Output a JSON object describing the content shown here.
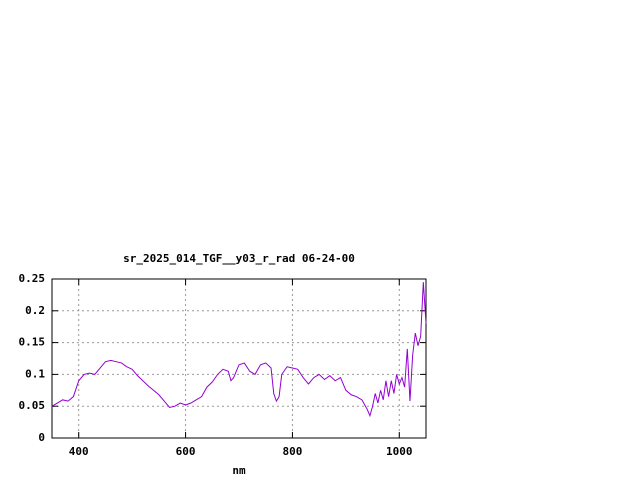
{
  "chart_data": {
    "type": "line",
    "title": "sr_2025_014_TGF__y03_r_rad 06-24-00",
    "x_label": "nm",
    "x": [
      350,
      360,
      370,
      380,
      390,
      400,
      410,
      420,
      430,
      440,
      450,
      460,
      470,
      480,
      490,
      500,
      510,
      520,
      530,
      540,
      550,
      560,
      570,
      580,
      590,
      600,
      610,
      620,
      630,
      640,
      650,
      660,
      670,
      680,
      685,
      690,
      700,
      710,
      720,
      730,
      740,
      750,
      760,
      765,
      770,
      775,
      780,
      790,
      800,
      810,
      820,
      830,
      840,
      850,
      860,
      870,
      880,
      890,
      900,
      910,
      920,
      930,
      940,
      945,
      950,
      955,
      960,
      965,
      970,
      975,
      980,
      985,
      990,
      995,
      1000,
      1005,
      1010,
      1015,
      1020,
      1025,
      1030,
      1035,
      1040,
      1045,
      1050
    ],
    "values": [
      0.05,
      0.055,
      0.06,
      0.058,
      0.065,
      0.09,
      0.1,
      0.102,
      0.1,
      0.11,
      0.12,
      0.122,
      0.12,
      0.118,
      0.112,
      0.108,
      0.098,
      0.09,
      0.082,
      0.075,
      0.068,
      0.058,
      0.048,
      0.05,
      0.055,
      0.052,
      0.055,
      0.06,
      0.065,
      0.08,
      0.088,
      0.1,
      0.108,
      0.105,
      0.09,
      0.095,
      0.115,
      0.118,
      0.105,
      0.1,
      0.115,
      0.118,
      0.11,
      0.07,
      0.058,
      0.065,
      0.1,
      0.112,
      0.11,
      0.108,
      0.095,
      0.085,
      0.095,
      0.1,
      0.092,
      0.098,
      0.09,
      0.095,
      0.075,
      0.068,
      0.065,
      0.06,
      0.045,
      0.035,
      0.05,
      0.07,
      0.055,
      0.075,
      0.06,
      0.09,
      0.065,
      0.09,
      0.07,
      0.1,
      0.085,
      0.095,
      0.08,
      0.14,
      0.058,
      0.13,
      0.165,
      0.145,
      0.16,
      0.245,
      0.18
    ],
    "color": "#9400d3",
    "xlim": [
      350,
      1050
    ],
    "ylim": [
      0,
      0.25
    ],
    "xticks": [
      400,
      600,
      800,
      1000
    ],
    "yticks": [
      0,
      0.05,
      0.1,
      0.15,
      0.2,
      0.25
    ],
    "grid": true
  }
}
